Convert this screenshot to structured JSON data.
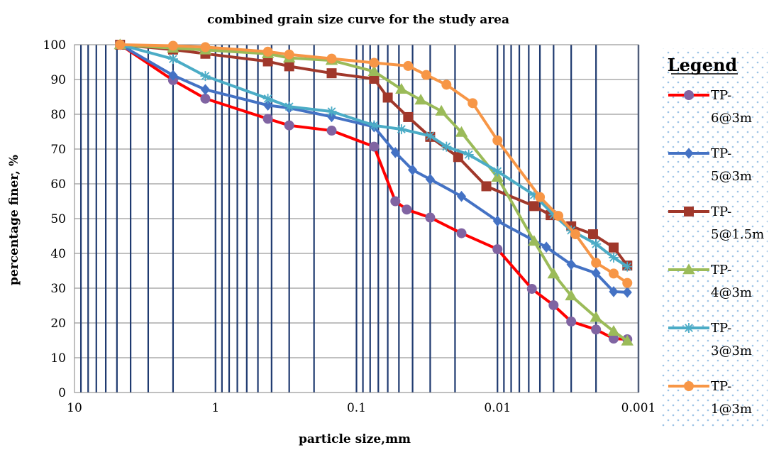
{
  "chart_data": {
    "type": "line",
    "title": "combined grain size curve for the study area",
    "xlabel": "particle size,mm",
    "ylabel": "percentage finer, %",
    "x_scale": "log",
    "x_reversed": true,
    "xlim": [
      10,
      0.001
    ],
    "ylim": [
      0,
      100
    ],
    "x_ticks": [
      10,
      1,
      0.1,
      0.01,
      0.001
    ],
    "x_tick_labels": [
      "10",
      "1",
      "0.1",
      "0.01",
      "0.001"
    ],
    "y_ticks": [
      0,
      10,
      20,
      30,
      40,
      50,
      60,
      70,
      80,
      90,
      100
    ],
    "y_tick_labels": [
      "0",
      "10",
      "20",
      "30",
      "40",
      "50",
      "60",
      "70",
      "80",
      "90",
      "100"
    ],
    "grid": "vertical log minor lines (dark blue), horizontal major lines",
    "legend_title": "Legend",
    "legend_position": "right",
    "series": [
      {
        "name": "TP-6@3m",
        "color": "#ff0000",
        "marker_color": "#8064a2",
        "marker": "circle",
        "x": [
          4.75,
          2.0,
          1.18,
          0.425,
          0.3,
          0.15,
          0.075,
          0.053,
          0.044,
          0.03,
          0.018,
          0.01,
          0.0057,
          0.004,
          0.003,
          0.002,
          0.0015,
          0.0012
        ],
        "y": [
          100,
          89.8,
          84.5,
          78.7,
          76.8,
          75.3,
          70.7,
          55,
          52.6,
          50.3,
          45.8,
          41.2,
          29.8,
          25.1,
          20.4,
          18.1,
          15.5,
          15.3
        ]
      },
      {
        "name": "TP-5@3m",
        "color": "#4472c4",
        "marker_color": "#4472c4",
        "marker": "diamond",
        "x": [
          4.75,
          2.0,
          1.18,
          0.425,
          0.3,
          0.15,
          0.075,
          0.053,
          0.04,
          0.03,
          0.018,
          0.01,
          0.0045,
          0.003,
          0.002,
          0.0015,
          0.0012
        ],
        "y": [
          100,
          91.2,
          87.1,
          82.6,
          81.8,
          79.3,
          76.4,
          69,
          64,
          61.3,
          56.4,
          49.3,
          41.8,
          36.8,
          34.3,
          29,
          28.8
        ]
      },
      {
        "name": "TP-5@1.5m",
        "color": "#a0382b",
        "marker_color": "#a0382b",
        "marker": "square",
        "x": [
          4.75,
          2.0,
          1.18,
          0.425,
          0.3,
          0.15,
          0.075,
          0.06,
          0.043,
          0.03,
          0.019,
          0.012,
          0.0055,
          0.0042,
          0.003,
          0.0021,
          0.0015,
          0.0012
        ],
        "y": [
          100,
          98.6,
          97.4,
          95.2,
          93.8,
          91.8,
          90.2,
          84.8,
          79.2,
          73.5,
          67.7,
          59.3,
          53.6,
          51,
          47.8,
          45.5,
          41.7,
          36.5
        ]
      },
      {
        "name": "TP-4@3m",
        "color": "#9bbb59",
        "marker_color": "#9bbb59",
        "marker": "triangle",
        "x": [
          4.75,
          2.0,
          1.18,
          0.425,
          0.3,
          0.15,
          0.075,
          0.048,
          0.035,
          0.025,
          0.018,
          0.01,
          0.0055,
          0.004,
          0.003,
          0.002,
          0.0015,
          0.0012
        ],
        "y": [
          100,
          99,
          98.5,
          97.4,
          96.2,
          95.5,
          92.3,
          87.2,
          84.1,
          80.9,
          74.8,
          61.9,
          43.5,
          34.1,
          27.8,
          21.6,
          17.6,
          14.8
        ]
      },
      {
        "name": "TP-3@3m",
        "color": "#4bacc6",
        "marker_color": "#4bacc6",
        "marker": "star",
        "x": [
          4.75,
          2.0,
          1.18,
          0.425,
          0.3,
          0.15,
          0.075,
          0.048,
          0.03,
          0.023,
          0.016,
          0.01,
          0.0055,
          0.004,
          0.003,
          0.002,
          0.0015,
          0.0012
        ],
        "y": [
          100,
          95.9,
          91,
          84.5,
          82.2,
          80.8,
          76.8,
          75.7,
          73.8,
          70.7,
          68.4,
          63.6,
          56.8,
          51.1,
          46.6,
          42.7,
          38.8,
          36.2
        ]
      },
      {
        "name": "TP-1@3m",
        "color": "#f79646",
        "marker_color": "#f79646",
        "marker": "circle",
        "x": [
          4.75,
          2.0,
          1.18,
          0.425,
          0.3,
          0.15,
          0.075,
          0.043,
          0.032,
          0.023,
          0.015,
          0.01,
          0.005,
          0.0037,
          0.0028,
          0.002,
          0.0015,
          0.0012
        ],
        "y": [
          100,
          99.7,
          99.3,
          98,
          97.2,
          96,
          94.8,
          93.9,
          91.3,
          88.5,
          83.2,
          72.5,
          56.2,
          50.8,
          45.5,
          37.3,
          34.2,
          31.5
        ]
      }
    ]
  }
}
